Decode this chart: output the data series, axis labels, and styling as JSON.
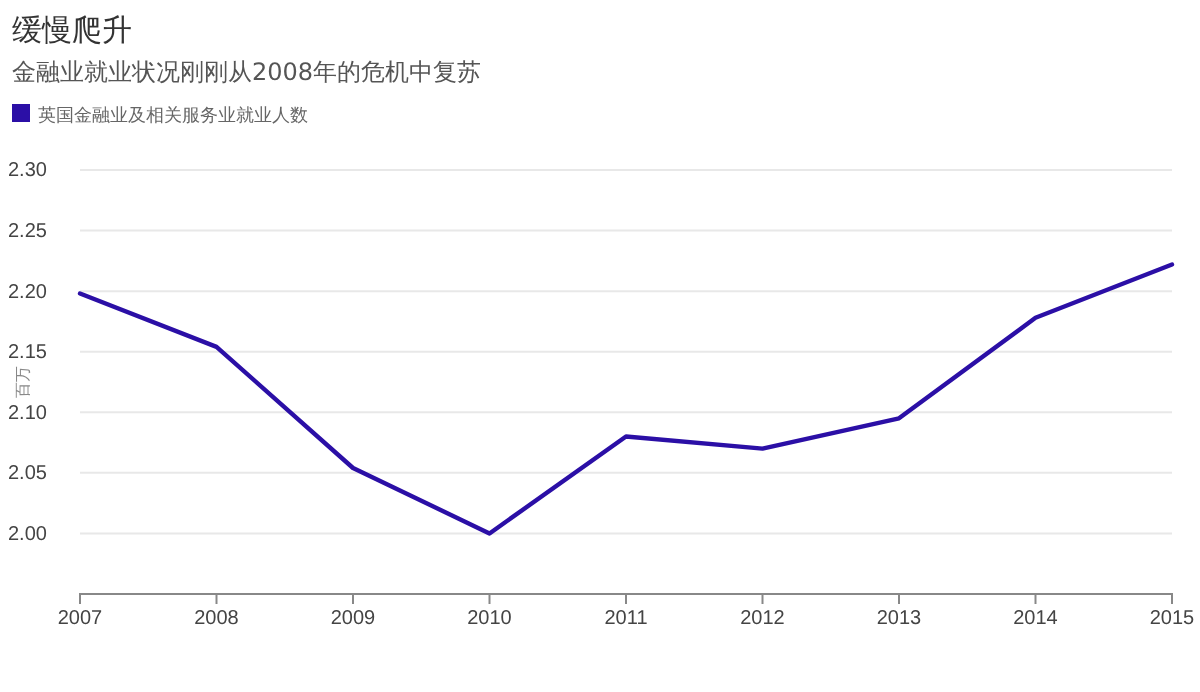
{
  "chart_data": {
    "type": "line",
    "title": "缓慢爬升",
    "subtitle": "金融业就业状况刚刚从2008年的危机中复苏",
    "ylabel": "百万",
    "x": [
      2007,
      2008,
      2009,
      2010,
      2011,
      2012,
      2013,
      2014,
      2015
    ],
    "series": [
      {
        "name": "英国金融业及相关服务业就业人数",
        "color": "#2b0fa6",
        "values": [
          2.198,
          2.154,
          2.054,
          2.0,
          2.08,
          2.07,
          2.095,
          2.178,
          2.222
        ]
      }
    ],
    "xlim": [
      2007,
      2015
    ],
    "xticks": [
      2007,
      2008,
      2009,
      2010,
      2011,
      2012,
      2013,
      2014,
      2015
    ],
    "ylim": [
      1.95,
      2.3
    ],
    "yticks": [
      {
        "value": 2.0,
        "label": "2.00"
      },
      {
        "value": 2.05,
        "label": "2.05"
      },
      {
        "value": 2.1,
        "label": "2.10"
      },
      {
        "value": 2.15,
        "label": "2.15"
      },
      {
        "value": 2.2,
        "label": "2.20"
      },
      {
        "value": 2.25,
        "label": "2.25"
      },
      {
        "value": 2.3,
        "label": "2.30"
      }
    ],
    "grid": "y",
    "legend": "top left",
    "marker": "none",
    "line_style": "solid"
  }
}
